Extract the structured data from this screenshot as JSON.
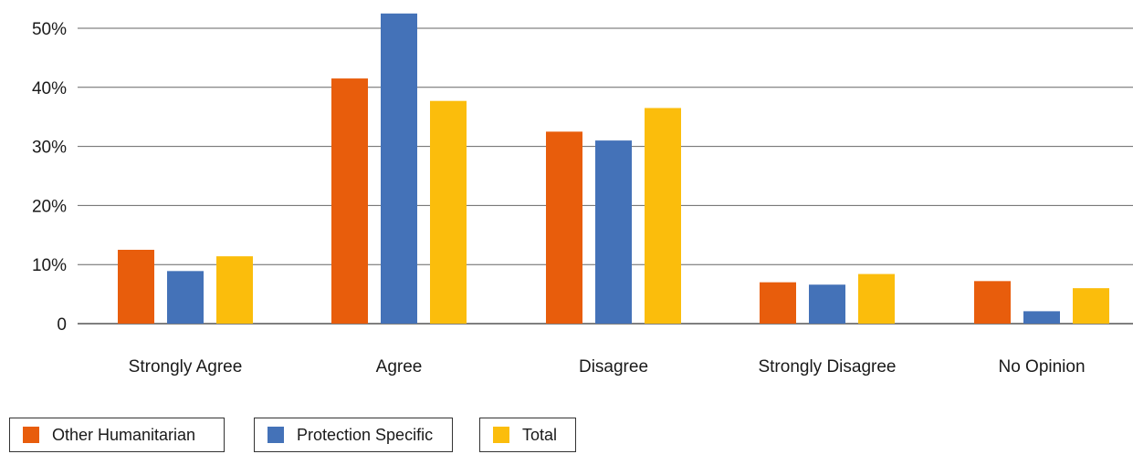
{
  "chart_data": {
    "type": "bar",
    "categories": [
      "Strongly Agree",
      "Agree",
      "Disagree",
      "Strongly Disagree",
      "No Opinion"
    ],
    "series": [
      {
        "name": "Other Humanitarian",
        "color": "#E85D0C",
        "values": [
          12.5,
          41.5,
          32.5,
          7,
          7.2
        ]
      },
      {
        "name": "Protection Specific",
        "color": "#4472B8",
        "values": [
          8.9,
          52.5,
          31,
          6.6,
          2.1
        ]
      },
      {
        "name": "Total",
        "color": "#FBBD0C",
        "values": [
          11.4,
          37.7,
          36.5,
          8.4,
          6
        ]
      }
    ],
    "yticks": [
      {
        "value": 0,
        "label": "0"
      },
      {
        "value": 10,
        "label": "10%"
      },
      {
        "value": 20,
        "label": "20%"
      },
      {
        "value": 30,
        "label": "30%"
      },
      {
        "value": 40,
        "label": "40%"
      },
      {
        "value": 50,
        "label": "50%"
      }
    ],
    "ylim": [
      0,
      50
    ],
    "grid": true,
    "legend_position": "bottom-left"
  }
}
